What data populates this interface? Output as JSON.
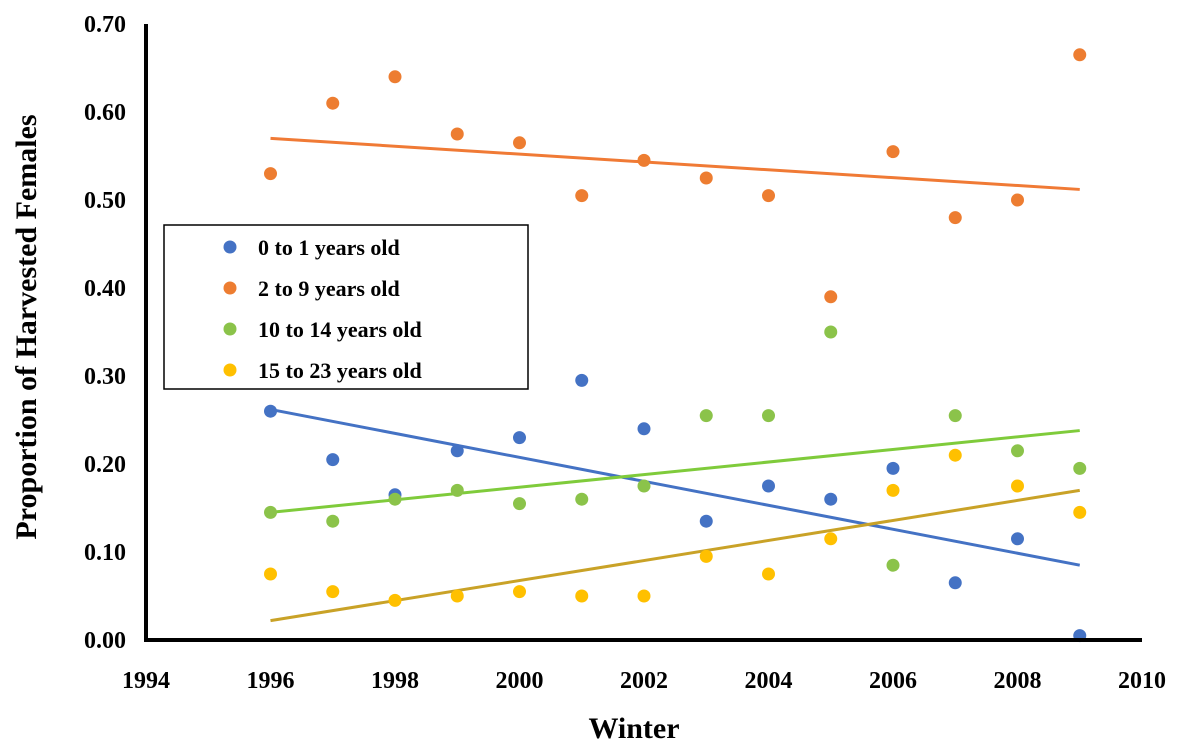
{
  "chart_data": {
    "type": "scatter",
    "title": "",
    "xlabel": "Winter",
    "ylabel": "Proportion of Harvested Females",
    "xlim": [
      1994,
      2010
    ],
    "ylim": [
      0,
      0.7
    ],
    "xticks": [
      "1994",
      "1996",
      "1998",
      "2000",
      "2002",
      "2004",
      "2006",
      "2008",
      "2010"
    ],
    "yticks": [
      "0.00",
      "0.10",
      "0.20",
      "0.30",
      "0.40",
      "0.50",
      "0.60",
      "0.70"
    ],
    "grid": false,
    "legend_position": "left",
    "x": [
      1996,
      1997,
      1998,
      1999,
      2000,
      2001,
      2002,
      2003,
      2004,
      2005,
      2006,
      2007,
      2008,
      2009
    ],
    "series": [
      {
        "name": "0 to 1 years old",
        "color": "#4472C4",
        "values": [
          0.26,
          0.205,
          0.165,
          0.215,
          0.23,
          0.295,
          0.24,
          0.135,
          0.175,
          0.16,
          0.195,
          0.065,
          0.115,
          0.005
        ],
        "trend": [
          0.262,
          0.085
        ]
      },
      {
        "name": "2 to 9 years old",
        "color": "#ED7D31",
        "values": [
          0.53,
          0.61,
          0.64,
          0.575,
          0.565,
          0.505,
          0.545,
          0.525,
          0.505,
          0.39,
          0.555,
          0.48,
          0.5,
          0.665
        ],
        "trend": [
          0.57,
          0.512
        ]
      },
      {
        "name": "10 to 14 years old",
        "color": "#8BC34A",
        "values": [
          0.145,
          0.135,
          0.16,
          0.17,
          0.155,
          0.16,
          0.175,
          0.255,
          0.255,
          0.35,
          0.085,
          0.255,
          0.215,
          0.195
        ],
        "trend": [
          0.145,
          0.238
        ]
      },
      {
        "name": "15 to 23 years old",
        "color": "#FFC000",
        "values": [
          0.075,
          0.055,
          0.045,
          0.05,
          0.055,
          0.05,
          0.05,
          0.095,
          0.075,
          0.115,
          0.17,
          0.21,
          0.175,
          0.145
        ],
        "trend": [
          0.022,
          0.17
        ]
      }
    ],
    "trend_colors": [
      "#4472C4",
      "#F07A35",
      "#7FCB3B",
      "#C9A227"
    ]
  }
}
